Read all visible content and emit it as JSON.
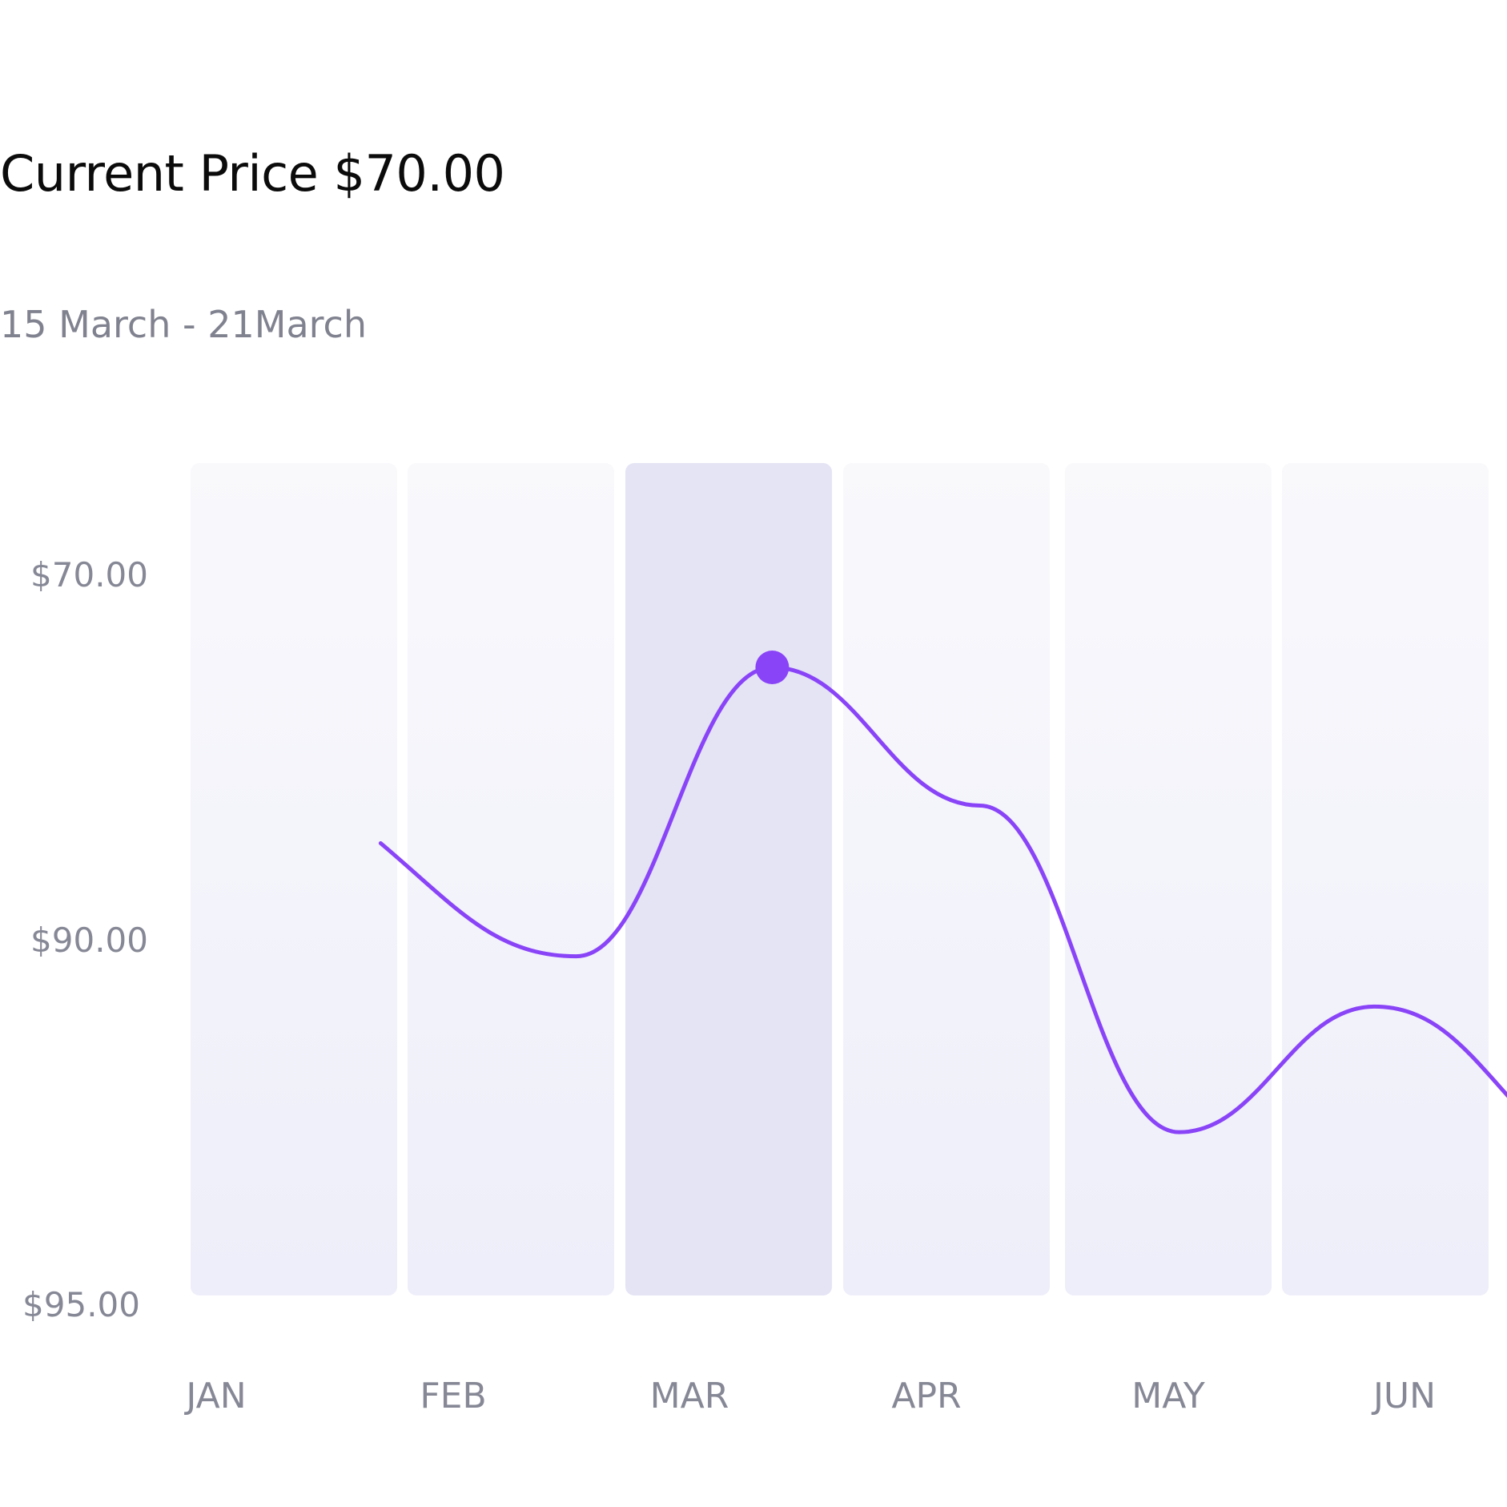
{
  "header": {
    "title": "Current Price $70.00",
    "subtitle": "15 March - 21March"
  },
  "colors": {
    "line": "#8a44f7",
    "column": "#f4f4fa",
    "column_highlight": "#e4e4f5",
    "axis_text": "#868896"
  },
  "chart_data": {
    "type": "line",
    "title": "Current Price $70.00",
    "subtitle": "15 March - 21March",
    "categories": [
      "JAN",
      "FEB",
      "MAR",
      "APR",
      "MAY",
      "JUN"
    ],
    "y_ticks": [
      "$70.00",
      "$90.00",
      "$95.00"
    ],
    "highlighted_category": "MAR",
    "marker_point": {
      "x": "MAR",
      "value": 75
    },
    "series": [
      {
        "points": [
          {
            "x": 0.4,
            "y": 82
          },
          {
            "x": 1.3,
            "y": 86.5
          },
          {
            "x": 2.2,
            "y": 75
          },
          {
            "x": 3.15,
            "y": 80.5
          },
          {
            "x": 4.05,
            "y": 93.5
          },
          {
            "x": 4.95,
            "y": 88.5
          },
          {
            "x": 5.85,
            "y": 94.5
          }
        ]
      }
    ],
    "grid": false,
    "legend": "none"
  }
}
